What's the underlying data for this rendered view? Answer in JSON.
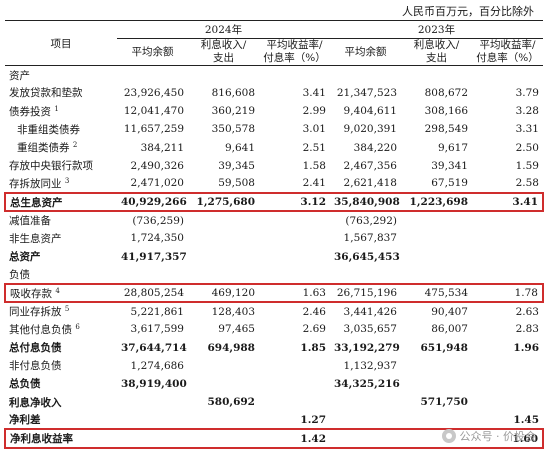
{
  "unit_note": "人民币百万元，百分比除外",
  "years": [
    "2024年",
    "2023年"
  ],
  "header": {
    "item": "项目",
    "avg_balance": "平均余额",
    "interest_1": "利息收入/",
    "interest_2": "支出",
    "yield_1": "平均收益率/",
    "yield_2": "付息率（%）"
  },
  "rows": [
    {
      "label": "资产",
      "indent": 0,
      "bold": false,
      "boxed": false,
      "cells": [
        "",
        "",
        "",
        "",
        "",
        ""
      ]
    },
    {
      "label": "发放贷款和垫款",
      "indent": 0,
      "bold": false,
      "boxed": false,
      "cells": [
        "23,926,450",
        "816,608",
        "3.41",
        "21,347,523",
        "808,672",
        "3.79"
      ]
    },
    {
      "label": "债券投资",
      "note": "1",
      "indent": 0,
      "bold": false,
      "boxed": false,
      "cells": [
        "12,041,470",
        "360,219",
        "2.99",
        "9,404,611",
        "308,166",
        "3.28"
      ]
    },
    {
      "label": "非重组类债券",
      "indent": 1,
      "bold": false,
      "boxed": false,
      "cells": [
        "11,657,259",
        "350,578",
        "3.01",
        "9,020,391",
        "298,549",
        "3.31"
      ]
    },
    {
      "label": "重组类债券",
      "note": "2",
      "indent": 1,
      "bold": false,
      "boxed": false,
      "cells": [
        "384,211",
        "9,641",
        "2.51",
        "384,220",
        "9,617",
        "2.50"
      ]
    },
    {
      "label": "存放中央银行款项",
      "indent": 0,
      "bold": false,
      "boxed": false,
      "cells": [
        "2,490,326",
        "39,345",
        "1.58",
        "2,467,356",
        "39,341",
        "1.59"
      ]
    },
    {
      "label": "存拆放同业",
      "note": "3",
      "indent": 0,
      "bold": false,
      "boxed": false,
      "cells": [
        "2,471,020",
        "59,508",
        "2.41",
        "2,621,418",
        "67,519",
        "2.58"
      ]
    },
    {
      "label": "总生息资产",
      "indent": 0,
      "bold": true,
      "boxed": true,
      "cells": [
        "40,929,266",
        "1,275,680",
        "3.12",
        "35,840,908",
        "1,223,698",
        "3.41"
      ]
    },
    {
      "label": "减值准备",
      "indent": 0,
      "bold": false,
      "boxed": false,
      "cells": [
        "(736,259)",
        "",
        "",
        "(763,292)",
        "",
        ""
      ]
    },
    {
      "label": "非生息资产",
      "indent": 0,
      "bold": false,
      "boxed": false,
      "cells": [
        "1,724,350",
        "",
        "",
        "1,567,837",
        "",
        ""
      ]
    },
    {
      "label": "总资产",
      "indent": 0,
      "bold": true,
      "boxed": false,
      "cells": [
        "41,917,357",
        "",
        "",
        "36,645,453",
        "",
        ""
      ]
    },
    {
      "label": "负债",
      "indent": 0,
      "bold": false,
      "boxed": false,
      "cells": [
        "",
        "",
        "",
        "",
        "",
        ""
      ]
    },
    {
      "label": "吸收存款",
      "note": "4",
      "indent": 0,
      "bold": false,
      "boxed": true,
      "cells": [
        "28,805,254",
        "469,120",
        "1.63",
        "26,715,196",
        "475,534",
        "1.78"
      ]
    },
    {
      "label": "同业存拆放",
      "note": "5",
      "indent": 0,
      "bold": false,
      "boxed": false,
      "cells": [
        "5,221,861",
        "128,403",
        "2.46",
        "3,441,426",
        "90,407",
        "2.63"
      ]
    },
    {
      "label": "其他付息负债",
      "note": "6",
      "indent": 0,
      "bold": false,
      "boxed": false,
      "cells": [
        "3,617,599",
        "97,465",
        "2.69",
        "3,035,657",
        "86,007",
        "2.83"
      ]
    },
    {
      "label": "总付息负债",
      "indent": 0,
      "bold": true,
      "boxed": false,
      "cells": [
        "37,644,714",
        "694,988",
        "1.85",
        "33,192,279",
        "651,948",
        "1.96"
      ]
    },
    {
      "label": "非付息负债",
      "indent": 0,
      "bold": false,
      "boxed": false,
      "cells": [
        "1,274,686",
        "",
        "",
        "1,132,937",
        "",
        ""
      ]
    },
    {
      "label": "总负债",
      "indent": 0,
      "bold": true,
      "boxed": false,
      "cells": [
        "38,919,400",
        "",
        "",
        "34,325,216",
        "",
        ""
      ]
    },
    {
      "label": "利息净收入",
      "indent": 0,
      "bold": true,
      "boxed": false,
      "cells": [
        "",
        "580,692",
        "",
        "",
        "571,750",
        ""
      ]
    },
    {
      "label": "净利差",
      "indent": 0,
      "bold": true,
      "boxed": false,
      "cells": [
        "",
        "",
        "1.27",
        "",
        "",
        "1.45"
      ]
    },
    {
      "label": "净利息收益率",
      "indent": 0,
      "bold": true,
      "boxed": true,
      "cells": [
        "",
        "",
        "1.42",
        "",
        "",
        "1.60"
      ]
    }
  ],
  "watermark": "公众号 · 价投会"
}
